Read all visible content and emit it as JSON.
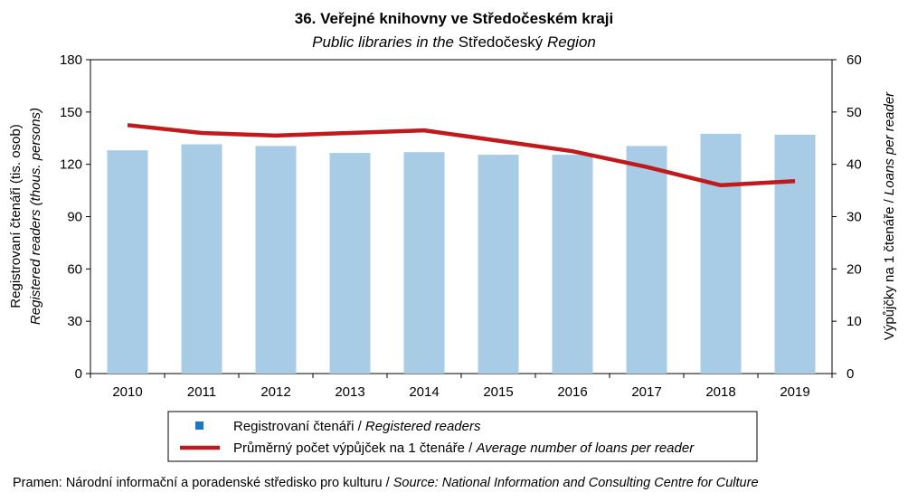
{
  "chart_data": {
    "type": "bar",
    "title": "36. Veřejné knihovny ve Středočeském kraji",
    "subtitle_italic_1": "Public libraries in the",
    "subtitle_regular": "Středočeský",
    "subtitle_italic_2": "Region",
    "categories": [
      "2010",
      "2011",
      "2012",
      "2013",
      "2014",
      "2015",
      "2016",
      "2017",
      "2018",
      "2019"
    ],
    "series": [
      {
        "name": "Registrovaní  čtenáři",
        "name_en": "Registered readers",
        "type": "bar",
        "axis": "left",
        "color": "#a9cce6",
        "values": [
          128,
          131.5,
          130.5,
          126.5,
          127,
          125.5,
          125.5,
          130.5,
          137.5,
          137
        ]
      },
      {
        "name": "Průměrný počet výpůjček na 1 čtenáře",
        "name_en": "Average number of loans per reader",
        "type": "line",
        "axis": "right",
        "color": "#c01a1c",
        "values": [
          47.5,
          46,
          45.5,
          46,
          46.5,
          44.5,
          42.5,
          39.5,
          36,
          36.8
        ]
      }
    ],
    "y_left": {
      "min": 0,
      "max": 180,
      "ticks": [
        "0",
        "30",
        "60",
        "90",
        "120",
        "150",
        "180"
      ],
      "label": "Registrovaní  čtenáři (tis. osob)",
      "label_en": "Registered readers (thous. persons)"
    },
    "y_right": {
      "min": 0,
      "max": 60,
      "ticks": [
        "0",
        "10",
        "20",
        "30",
        "40",
        "50",
        "60"
      ],
      "label": "Výpůjčky na 1 čtenáře",
      "label_en": "Loans per reader"
    },
    "grid": false,
    "legend_position": "bottom",
    "source": "Pramen: Národní informační a poradenské středisko pro kulturu",
    "source_en": "Source: National Information and Consulting Centre for Culture"
  }
}
